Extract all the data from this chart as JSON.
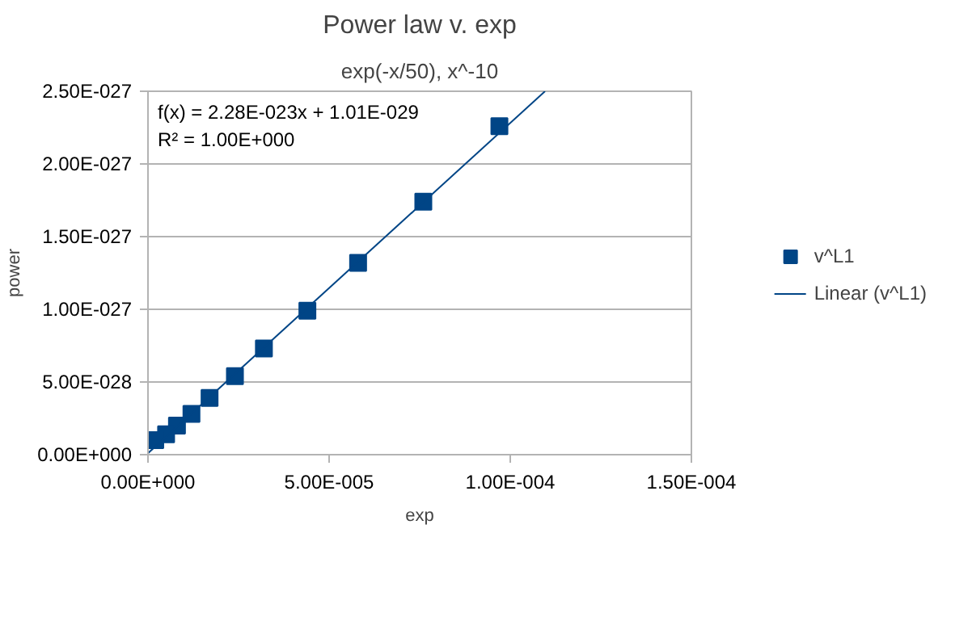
{
  "chart_data": {
    "type": "scatter",
    "title": "Power law v. exp",
    "subtitle": "exp(-x/50), x^-10",
    "xlabel": "exp",
    "ylabel": "power",
    "annotations": [
      "f(x) = 2.28E-023x + 1.01E-029",
      "R² = 1.00E+000"
    ],
    "series": [
      {
        "name": "v^L1",
        "color": "#004586",
        "marker": "square",
        "x": [
          9.7e-05,
          7.6e-05,
          5.8e-05,
          4.4e-05,
          3.2e-05,
          2.4e-05,
          1.7e-05,
          1.2e-05,
          8e-06,
          5e-06,
          2e-06
        ],
        "values": [
          2.26e-27,
          1.74e-27,
          1.32e-27,
          9.9e-28,
          7.3e-28,
          5.4e-28,
          3.9e-28,
          2.8e-28,
          2e-28,
          1.4e-28,
          1e-28
        ]
      },
      {
        "name": "Linear (v^L1)",
        "type": "line",
        "color": "#004586",
        "marker": "none",
        "line_style": "solid",
        "x": [
          0,
          0.0001096
        ],
        "values": [
          1.01e-29,
          2.5e-27
        ]
      }
    ],
    "xlim": [
      0,
      0.00015
    ],
    "xticks": [
      {
        "value": 0,
        "label": "0.00E+000"
      },
      {
        "value": 5e-05,
        "label": "5.00E-005"
      },
      {
        "value": 0.0001,
        "label": "1.00E-004"
      },
      {
        "value": 0.00015,
        "label": "1.50E-004"
      }
    ],
    "ylim": [
      0,
      2.5e-27
    ],
    "yticks": [
      {
        "value": 0,
        "label": "0.00E+000"
      },
      {
        "value": 5e-28,
        "label": "5.00E-028"
      },
      {
        "value": 1e-27,
        "label": "1.00E-027"
      },
      {
        "value": 1.5e-27,
        "label": "1.50E-027"
      },
      {
        "value": 2e-27,
        "label": "2.00E-027"
      },
      {
        "value": 2.5e-27,
        "label": "2.50E-027"
      }
    ],
    "grid": "y",
    "legend": "right"
  }
}
